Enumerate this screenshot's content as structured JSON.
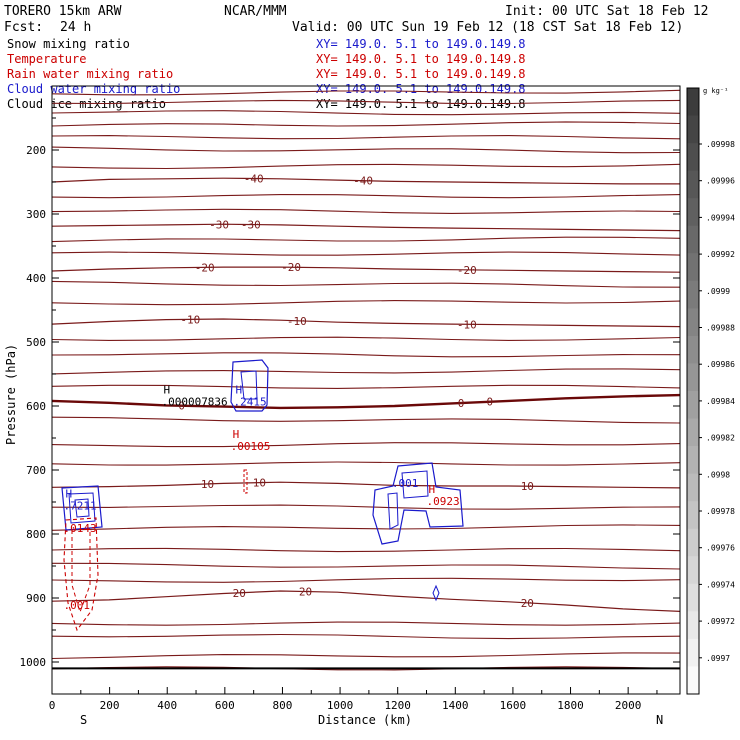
{
  "header": {
    "model": "TORERO   15km ARW",
    "org": "NCAR/MMM",
    "init": "Init: 00 UTC Sat 18 Feb 12",
    "fcst_label": "Fcst:",
    "fcst_value": "24 h",
    "valid": "Valid: 00 UTC Sun 19 Feb 12 (18 CST Sat 18 Feb 12)"
  },
  "fields": [
    {
      "name": "Snow mixing ratio",
      "xy": "XY= 149.0.  5.1 to 149.0.149.8",
      "color": "#000000"
    },
    {
      "name": "Temperature",
      "xy": "XY= 149.0.  5.1 to 149.0.149.8",
      "color": "#cc0000"
    },
    {
      "name": "Rain water mixing ratio",
      "xy": "XY= 149.0.  5.1 to 149.0.149.8",
      "color": "#cc0000"
    },
    {
      "name": "Cloud water mixing ratio",
      "xy": "XY= 149.0.  5.1 to 149.0.149.8",
      "color": "#1a1acc"
    },
    {
      "name": "Cloud ice mixing ratio",
      "xy": "XY= 149.0.  5.1 to 149.0.149.8",
      "color": "#000000"
    }
  ],
  "colorbar": {
    "unit": "g kg⁻¹",
    "labels": [
      ".09998",
      ".09996",
      ".09994",
      ".09992",
      ".0999",
      ".09988",
      ".09986",
      ".09984",
      ".09982",
      ".0998",
      ".09978",
      ".09976",
      ".09974",
      ".09972",
      ".0997"
    ]
  },
  "chart_data": {
    "type": "contour",
    "xlabel": "Distance (km)",
    "ylabel": "Pressure (hPa)",
    "xlim": [
      0,
      2180
    ],
    "ylim": [
      1050,
      100
    ],
    "xticks": [
      0,
      200,
      400,
      600,
      800,
      1000,
      1200,
      1400,
      1600,
      1800,
      2000
    ],
    "yticks": [
      200,
      300,
      400,
      500,
      600,
      700,
      800,
      900,
      1000
    ],
    "x_end_labels": {
      "left": "S",
      "right": "N"
    },
    "temperature_contours": [
      {
        "level": -40,
        "pressure": [
          250,
          246,
          245,
          244,
          245,
          247,
          249,
          250,
          251,
          252,
          253,
          253
        ],
        "labels": [
          {
            "x": 700,
            "text": "-40"
          },
          {
            "x": 1080,
            "text": "-40"
          }
        ]
      },
      {
        "level": -30,
        "pressure": [
          319,
          318,
          317,
          316,
          317,
          319,
          321,
          322,
          323,
          324,
          325,
          326
        ],
        "labels": [
          {
            "x": 580,
            "text": "-30"
          },
          {
            "x": 690,
            "text": "-30"
          }
        ]
      },
      {
        "level": -20,
        "pressure": [
          389,
          386,
          384,
          383,
          383,
          384,
          386,
          387,
          388,
          389,
          390,
          391
        ],
        "labels": [
          {
            "x": 530,
            "text": "-20"
          },
          {
            "x": 830,
            "text": "-20"
          },
          {
            "x": 1440,
            "text": "-20"
          }
        ]
      },
      {
        "level": -10,
        "pressure": [
          472,
          468,
          465,
          464,
          466,
          469,
          471,
          472,
          473,
          474,
          475,
          476
        ],
        "labels": [
          {
            "x": 480,
            "text": "-10"
          },
          {
            "x": 850,
            "text": "-10"
          },
          {
            "x": 1440,
            "text": "-10"
          }
        ]
      },
      {
        "level": 0,
        "pressure": [
          592,
          595,
          599,
          601,
          603,
          602,
          600,
          596,
          592,
          588,
          585,
          583
        ],
        "labels": [
          {
            "x": 450,
            "text": "0"
          },
          {
            "x": 1420,
            "text": "0"
          },
          {
            "x": 1520,
            "text": "0"
          }
        ]
      },
      {
        "level": 10,
        "pressure": [
          727,
          726,
          724,
          721,
          719,
          721,
          724,
          725,
          725,
          726,
          727,
          728
        ],
        "labels": [
          {
            "x": 540,
            "text": "10"
          },
          {
            "x": 720,
            "text": "10"
          },
          {
            "x": 1650,
            "text": "10"
          }
        ]
      },
      {
        "level": 20,
        "pressure": [
          905,
          903,
          898,
          893,
          889,
          891,
          897,
          902,
          906,
          911,
          917,
          921
        ],
        "labels": [
          {
            "x": 650,
            "text": "20"
          },
          {
            "x": 880,
            "text": "20"
          },
          {
            "x": 1650,
            "text": "20"
          }
        ]
      }
    ],
    "background_isotherm_pressures": [
      110,
      125,
      142,
      160,
      180,
      200,
      225,
      272,
      296,
      340,
      362,
      410,
      438,
      495,
      520,
      546,
      570,
      622,
      660,
      690,
      758,
      790,
      825,
      850,
      872,
      940,
      960,
      990,
      1010
    ],
    "extrema_labels": [
      {
        "x": 380,
        "p": 602,
        "mark": "H",
        "value": ".000007836",
        "color": "#000000"
      },
      {
        "x": 630,
        "p": 602,
        "mark": "H",
        "value": ".2415",
        "color": "#1a1acc"
      },
      {
        "x": 620,
        "p": 672,
        "mark": "H",
        "value": ".00105",
        "color": "#cc0000"
      },
      {
        "x": 1180,
        "p": 730,
        "mark": "",
        "value": ".001",
        "color": "#1a1acc"
      },
      {
        "x": 1300,
        "p": 758,
        "mark": "H",
        "value": ".0923",
        "color": "#cc0000"
      },
      {
        "x": 40,
        "p": 765,
        "mark": "H",
        "value": ".7211",
        "color": "#1a1acc"
      },
      {
        "x": 40,
        "p": 800,
        "mark": "",
        "value": ".0143",
        "color": "#cc0000"
      },
      {
        "x": 40,
        "p": 920,
        "mark": "",
        "value": ".001",
        "color": "#cc0000"
      }
    ]
  }
}
